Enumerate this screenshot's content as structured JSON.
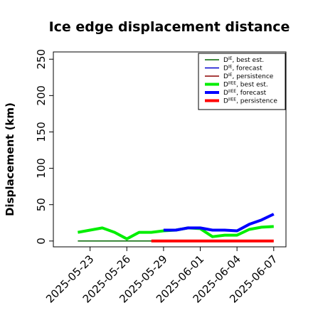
{
  "chart_data": {
    "type": "line",
    "title": "Ice edge displacement distance",
    "xlabel": "",
    "ylabel": "Displacement (km)",
    "ylim": [
      -8,
      260
    ],
    "yticks": [
      0,
      50,
      100,
      150,
      200,
      250
    ],
    "xlim": [
      "2025-05-20",
      "2025-06-08"
    ],
    "xticks": [
      {
        "date": "2025-05-23",
        "label": "2025-05-23",
        "color": "#000000"
      },
      {
        "date": "2025-05-26",
        "label": "2025-05-26",
        "color": "#000000"
      },
      {
        "date": "2025-05-29",
        "label": "2025-05-29",
        "color": "#228b22"
      },
      {
        "date": "2025-06-01",
        "label": "2025-06-01",
        "color": "#000000"
      },
      {
        "date": "2025-06-04",
        "label": "2025-06-04",
        "color": "#000000"
      },
      {
        "date": "2025-06-07",
        "label": "2025-06-07",
        "color": "#000000"
      }
    ],
    "legend_position": "top-right",
    "series": [
      {
        "name": "D^IE, best est.",
        "base": "D",
        "sup": "IE",
        "rest": ", best est.",
        "color": "#006400",
        "width": 1.5,
        "x": [
          "2025-05-22",
          "2025-05-23",
          "2025-05-24",
          "2025-05-25",
          "2025-05-26",
          "2025-05-27",
          "2025-05-28",
          "2025-05-29"
        ],
        "y": [
          0,
          0,
          0,
          0,
          0,
          0,
          0,
          0
        ]
      },
      {
        "name": "D^IE, forecast",
        "base": "D",
        "sup": "IE",
        "rest": ", forecast",
        "color": "#0000cd",
        "width": 1.5,
        "x": [],
        "y": []
      },
      {
        "name": "D^IE, persistence",
        "base": "D",
        "sup": "IE",
        "rest": ", persistence",
        "color": "#8b0000",
        "width": 1.5,
        "x": [],
        "y": []
      },
      {
        "name": "D^IIEE, best est.",
        "base": "D",
        "sup": "IIEE",
        "rest": ", best est.",
        "color": "#00ee00",
        "width": 4,
        "x": [
          "2025-05-22",
          "2025-05-23",
          "2025-05-24",
          "2025-05-25",
          "2025-05-26",
          "2025-05-27",
          "2025-05-28",
          "2025-05-29",
          "2025-05-30",
          "2025-05-31",
          "2025-06-01",
          "2025-06-02",
          "2025-06-03",
          "2025-06-04",
          "2025-06-05",
          "2025-06-06",
          "2025-06-07"
        ],
        "y": [
          12,
          15,
          18,
          12,
          3,
          12,
          12,
          14,
          15,
          18,
          17,
          6,
          8,
          8,
          16,
          19,
          20
        ]
      },
      {
        "name": "D^IIEE, forecast",
        "base": "D",
        "sup": "IIEE",
        "rest": ", forecast",
        "color": "#0000ff",
        "width": 4,
        "x": [
          "2025-05-29",
          "2025-05-30",
          "2025-05-31",
          "2025-06-01",
          "2025-06-02",
          "2025-06-03",
          "2025-06-04",
          "2025-06-05",
          "2025-06-06",
          "2025-06-07"
        ],
        "y": [
          15,
          15,
          18,
          18,
          15,
          15,
          14,
          23,
          29,
          37
        ]
      },
      {
        "name": "D^IIEE, persistence",
        "base": "D",
        "sup": "IIEE",
        "rest": ", persistence",
        "color": "#ff0000",
        "width": 4,
        "x": [
          "2025-05-28",
          "2025-05-29",
          "2025-05-30",
          "2025-05-31",
          "2025-06-01",
          "2025-06-02",
          "2025-06-03",
          "2025-06-04",
          "2025-06-05",
          "2025-06-06",
          "2025-06-07"
        ],
        "y": [
          0,
          0,
          0,
          0,
          0,
          0,
          0,
          0,
          0,
          0,
          0
        ]
      }
    ]
  }
}
